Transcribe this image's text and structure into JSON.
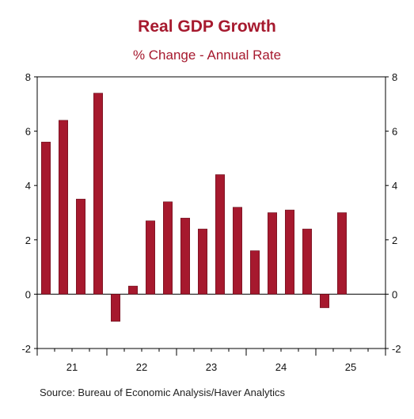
{
  "colors": {
    "bar": "#a6192e",
    "title": "#a6192e",
    "axis": "#000000"
  },
  "chart_data": {
    "type": "bar",
    "title": "Real GDP Growth",
    "subtitle": "% Change - Annual Rate",
    "source": "Source:  Bureau of Economic Analysis/Haver Analytics",
    "xlabel": "",
    "ylabel": "",
    "ylim": [
      -2,
      8
    ],
    "yticks": [
      -2,
      0,
      2,
      4,
      6,
      8
    ],
    "categories": [
      "21Q1",
      "21Q2",
      "21Q3",
      "21Q4",
      "22Q1",
      "22Q2",
      "22Q3",
      "22Q4",
      "23Q1",
      "23Q2",
      "23Q3",
      "23Q4",
      "24Q1",
      "24Q2",
      "24Q3",
      "24Q4",
      "25Q1",
      "25Q2"
    ],
    "values": [
      5.6,
      6.4,
      3.5,
      7.4,
      -1.0,
      0.3,
      2.7,
      3.4,
      2.8,
      2.4,
      4.4,
      3.2,
      1.6,
      3.0,
      3.1,
      2.4,
      -0.5,
      3.0
    ],
    "year_labels": [
      "21",
      "22",
      "23",
      "24",
      "25"
    ],
    "quarters_per_year": 4,
    "slots": 20,
    "grid": false,
    "zero_line": true
  }
}
